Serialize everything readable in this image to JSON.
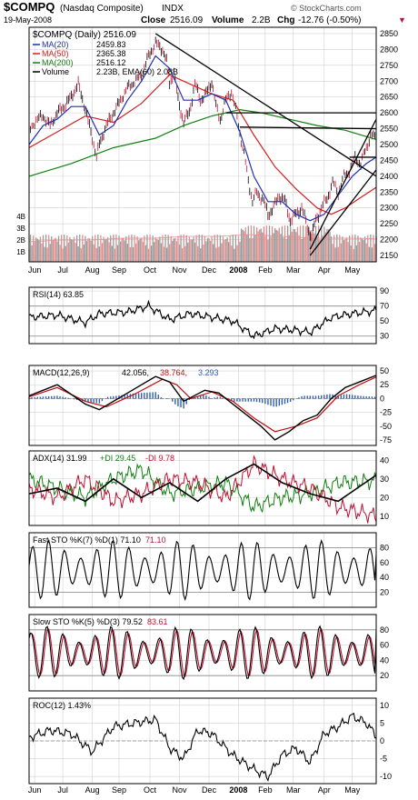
{
  "header": {
    "symbol": "$COMPQ",
    "name": "(Nasdaq Composite)",
    "exchange": "INDX",
    "date": "19-May-2008",
    "close_label": "Close",
    "close": "2516.09",
    "volume_label": "Volume",
    "volume": "2.2B",
    "chg_label": "Chg",
    "chg": "-12.76 (-0.50%)",
    "chg_marker": "▼",
    "watermark": "© StockCharts.com"
  },
  "colors": {
    "panel_fill": "#ffffff",
    "grid": "#d0d0d0",
    "frame": "#000000",
    "price": "#000000",
    "ma20": "#2030b0",
    "ma50": "#d02020",
    "ma200": "#108010",
    "volume_up": "#9a9a9a",
    "volume_down": "#e09090",
    "macd_signal": "#c01010",
    "macd_hist": "#3060b0",
    "plus_di": "#108010",
    "minus_di": "#c01030",
    "neg_value": "#c01030",
    "pos_value": "#3060b0"
  },
  "x_axis": {
    "labels": [
      "Jun",
      "Jul",
      "Aug",
      "Sep",
      "Oct",
      "Nov",
      "Dec",
      "2008",
      "Feb",
      "Mar",
      "Apr",
      "May"
    ]
  },
  "chart_data": [
    {
      "type": "candlestick",
      "panel": "price",
      "title": "$COMPQ (Daily) 2516.09",
      "legend": [
        {
          "name": "MA(20)",
          "value": "2459.83",
          "color": "#2030b0"
        },
        {
          "name": "MA(50)",
          "value": "2365.38",
          "color": "#d02020"
        },
        {
          "name": "MA(200)",
          "value": "2516.12",
          "color": "#108010"
        },
        {
          "name": "Volume",
          "value": "2.23B, EMA(60) 2.08B",
          "color": "#000000"
        }
      ],
      "ylim": [
        2130,
        2870
      ],
      "y_ticks": [
        2150,
        2200,
        2250,
        2300,
        2350,
        2400,
        2450,
        2500,
        2550,
        2600,
        2650,
        2700,
        2750,
        2800,
        2850
      ],
      "volume_ticks": [
        "1B",
        "2B",
        "3B",
        "4B"
      ],
      "price_points": [
        [
          0,
          2540
        ],
        [
          5,
          2580
        ],
        [
          10,
          2590
        ],
        [
          15,
          2560
        ],
        [
          20,
          2600
        ],
        [
          25,
          2620
        ],
        [
          30,
          2650
        ],
        [
          35,
          2690
        ],
        [
          40,
          2610
        ],
        [
          45,
          2520
        ],
        [
          48,
          2460
        ],
        [
          50,
          2500
        ],
        [
          55,
          2560
        ],
        [
          60,
          2600
        ],
        [
          65,
          2640
        ],
        [
          70,
          2680
        ],
        [
          75,
          2700
        ],
        [
          80,
          2720
        ],
        [
          85,
          2780
        ],
        [
          90,
          2820
        ],
        [
          95,
          2800
        ],
        [
          98,
          2760
        ],
        [
          100,
          2690
        ],
        [
          103,
          2730
        ],
        [
          106,
          2640
        ],
        [
          110,
          2570
        ],
        [
          114,
          2600
        ],
        [
          118,
          2690
        ],
        [
          122,
          2640
        ],
        [
          126,
          2660
        ],
        [
          130,
          2700
        ],
        [
          133,
          2620
        ],
        [
          136,
          2580
        ],
        [
          140,
          2640
        ],
        [
          144,
          2670
        ],
        [
          147,
          2610
        ],
        [
          150,
          2540
        ],
        [
          153,
          2470
        ],
        [
          156,
          2390
        ],
        [
          159,
          2320
        ],
        [
          162,
          2350
        ],
        [
          166,
          2330
        ],
        [
          170,
          2280
        ],
        [
          174,
          2300
        ],
        [
          178,
          2340
        ],
        [
          182,
          2320
        ],
        [
          186,
          2260
        ],
        [
          190,
          2280
        ],
        [
          194,
          2300
        ],
        [
          198,
          2240
        ],
        [
          201,
          2210
        ],
        [
          204,
          2260
        ],
        [
          208,
          2300
        ],
        [
          212,
          2330
        ],
        [
          216,
          2380
        ],
        [
          220,
          2350
        ],
        [
          224,
          2400
        ],
        [
          228,
          2420
        ],
        [
          232,
          2460
        ],
        [
          236,
          2440
        ],
        [
          240,
          2490
        ],
        [
          243,
          2530
        ],
        [
          247,
          2516
        ]
      ],
      "ma20_points": [
        [
          0,
          2500
        ],
        [
          10,
          2560
        ],
        [
          20,
          2580
        ],
        [
          30,
          2620
        ],
        [
          40,
          2620
        ],
        [
          50,
          2530
        ],
        [
          60,
          2560
        ],
        [
          70,
          2640
        ],
        [
          80,
          2700
        ],
        [
          90,
          2780
        ],
        [
          100,
          2740
        ],
        [
          110,
          2640
        ],
        [
          120,
          2640
        ],
        [
          130,
          2660
        ],
        [
          140,
          2640
        ],
        [
          150,
          2540
        ],
        [
          160,
          2400
        ],
        [
          170,
          2320
        ],
        [
          180,
          2320
        ],
        [
          190,
          2280
        ],
        [
          200,
          2260
        ],
        [
          210,
          2280
        ],
        [
          220,
          2340
        ],
        [
          230,
          2400
        ],
        [
          240,
          2440
        ],
        [
          247,
          2460
        ]
      ],
      "ma50_points": [
        [
          0,
          2490
        ],
        [
          20,
          2540
        ],
        [
          40,
          2590
        ],
        [
          60,
          2570
        ],
        [
          80,
          2630
        ],
        [
          100,
          2720
        ],
        [
          110,
          2700
        ],
        [
          130,
          2660
        ],
        [
          145,
          2640
        ],
        [
          160,
          2530
        ],
        [
          175,
          2430
        ],
        [
          190,
          2360
        ],
        [
          205,
          2300
        ],
        [
          215,
          2280
        ],
        [
          225,
          2300
        ],
        [
          235,
          2330
        ],
        [
          247,
          2365
        ]
      ],
      "ma200_points": [
        [
          0,
          2400
        ],
        [
          30,
          2440
        ],
        [
          60,
          2490
        ],
        [
          90,
          2520
        ],
        [
          110,
          2560
        ],
        [
          130,
          2590
        ],
        [
          150,
          2610
        ],
        [
          165,
          2600
        ],
        [
          185,
          2580
        ],
        [
          205,
          2560
        ],
        [
          225,
          2545
        ],
        [
          247,
          2516
        ]
      ],
      "volume_ema_bn": [
        1.9,
        2.0,
        2.0,
        2.1,
        2.1,
        2.2,
        2.2,
        2.3,
        2.2,
        2.1,
        2.1,
        2.08
      ]
    },
    {
      "type": "line",
      "panel": "rsi",
      "title": "RSI(14) 63.85",
      "ylim": [
        20,
        95
      ],
      "y_ticks": [
        30,
        50,
        70,
        90
      ],
      "ref_lines": [
        30,
        70
      ],
      "points": [
        [
          0,
          55
        ],
        [
          20,
          58
        ],
        [
          40,
          48
        ],
        [
          50,
          60
        ],
        [
          70,
          62
        ],
        [
          85,
          70
        ],
        [
          100,
          52
        ],
        [
          115,
          60
        ],
        [
          130,
          55
        ],
        [
          145,
          50
        ],
        [
          160,
          30
        ],
        [
          175,
          40
        ],
        [
          190,
          38
        ],
        [
          200,
          35
        ],
        [
          215,
          55
        ],
        [
          230,
          60
        ],
        [
          247,
          64
        ]
      ]
    },
    {
      "type": "line",
      "panel": "macd",
      "title": "MACD(12,26,9)",
      "legend_values": [
        "42.056",
        "38.764",
        "3.293"
      ],
      "ylim": [
        -85,
        60
      ],
      "y_ticks": [
        -75,
        -50,
        -25,
        0,
        25,
        50
      ],
      "macd": [
        [
          0,
          5
        ],
        [
          20,
          25
        ],
        [
          40,
          -10
        ],
        [
          50,
          -20
        ],
        [
          70,
          10
        ],
        [
          90,
          40
        ],
        [
          100,
          30
        ],
        [
          110,
          -5
        ],
        [
          125,
          15
        ],
        [
          135,
          10
        ],
        [
          150,
          -20
        ],
        [
          165,
          -50
        ],
        [
          175,
          -75
        ],
        [
          185,
          -60
        ],
        [
          195,
          -40
        ],
        [
          205,
          -30
        ],
        [
          215,
          0
        ],
        [
          225,
          20
        ],
        [
          235,
          30
        ],
        [
          247,
          42
        ]
      ],
      "signal": [
        [
          0,
          3
        ],
        [
          20,
          20
        ],
        [
          40,
          -5
        ],
        [
          55,
          -15
        ],
        [
          75,
          8
        ],
        [
          95,
          35
        ],
        [
          105,
          25
        ],
        [
          115,
          0
        ],
        [
          130,
          12
        ],
        [
          145,
          -5
        ],
        [
          160,
          -35
        ],
        [
          175,
          -60
        ],
        [
          190,
          -50
        ],
        [
          205,
          -35
        ],
        [
          220,
          5
        ],
        [
          235,
          25
        ],
        [
          247,
          39
        ]
      ]
    },
    {
      "type": "line",
      "panel": "adx",
      "title": "ADX(14) 31.99",
      "legend": [
        "+DI 29.45",
        "-DI 9.78"
      ],
      "ylim": [
        5,
        45
      ],
      "y_ticks": [
        10,
        20,
        30,
        40
      ],
      "adx": [
        [
          0,
          22
        ],
        [
          20,
          25
        ],
        [
          40,
          18
        ],
        [
          60,
          30
        ],
        [
          80,
          20
        ],
        [
          100,
          28
        ],
        [
          120,
          18
        ],
        [
          140,
          30
        ],
        [
          160,
          38
        ],
        [
          180,
          28
        ],
        [
          200,
          22
        ],
        [
          220,
          18
        ],
        [
          247,
          32
        ]
      ],
      "plus_di": [
        [
          0,
          30
        ],
        [
          20,
          25
        ],
        [
          40,
          20
        ],
        [
          60,
          30
        ],
        [
          80,
          35
        ],
        [
          100,
          22
        ],
        [
          120,
          25
        ],
        [
          140,
          28
        ],
        [
          160,
          15
        ],
        [
          180,
          20
        ],
        [
          200,
          22
        ],
        [
          220,
          28
        ],
        [
          247,
          29
        ]
      ],
      "minus_di": [
        [
          0,
          25
        ],
        [
          20,
          20
        ],
        [
          40,
          30
        ],
        [
          60,
          18
        ],
        [
          80,
          22
        ],
        [
          100,
          30
        ],
        [
          120,
          28
        ],
        [
          140,
          20
        ],
        [
          160,
          38
        ],
        [
          180,
          30
        ],
        [
          200,
          25
        ],
        [
          220,
          15
        ],
        [
          247,
          10
        ]
      ]
    },
    {
      "type": "line",
      "panel": "fast_sto",
      "title": "Fast STO %K(7) %D(1) 71.10",
      "legend_value": "71.10",
      "ylim": [
        0,
        100
      ],
      "y_ticks": [
        20,
        40,
        60,
        80
      ],
      "ref_lines": [
        20,
        80
      ],
      "oscillation_amp": 40,
      "oscillation_mid": 50,
      "last_value": 71.1
    },
    {
      "type": "line",
      "panel": "slow_sto",
      "title": "Slow STO %K(5) %D(3) 79.52",
      "legend_value": "83.61",
      "ylim": [
        0,
        100
      ],
      "y_ticks": [
        20,
        40,
        60,
        80
      ],
      "ref_lines": [
        20,
        80
      ],
      "oscillation_amp": 35,
      "oscillation_mid": 50,
      "last_value": 79.52
    },
    {
      "type": "line",
      "panel": "roc",
      "title": "ROC(12) 1.43%",
      "ylim": [
        -12,
        12
      ],
      "y_ticks": [
        -10,
        -5,
        0,
        5,
        10
      ],
      "points": [
        [
          0,
          1
        ],
        [
          15,
          3
        ],
        [
          30,
          2
        ],
        [
          45,
          -3
        ],
        [
          60,
          4
        ],
        [
          75,
          5
        ],
        [
          90,
          6
        ],
        [
          100,
          -2
        ],
        [
          110,
          -5
        ],
        [
          120,
          3
        ],
        [
          130,
          2
        ],
        [
          145,
          -4
        ],
        [
          160,
          -8
        ],
        [
          170,
          -10
        ],
        [
          180,
          -4
        ],
        [
          190,
          -2
        ],
        [
          200,
          -6
        ],
        [
          210,
          2
        ],
        [
          220,
          4
        ],
        [
          230,
          7
        ],
        [
          240,
          5
        ],
        [
          247,
          1.4
        ]
      ]
    }
  ]
}
